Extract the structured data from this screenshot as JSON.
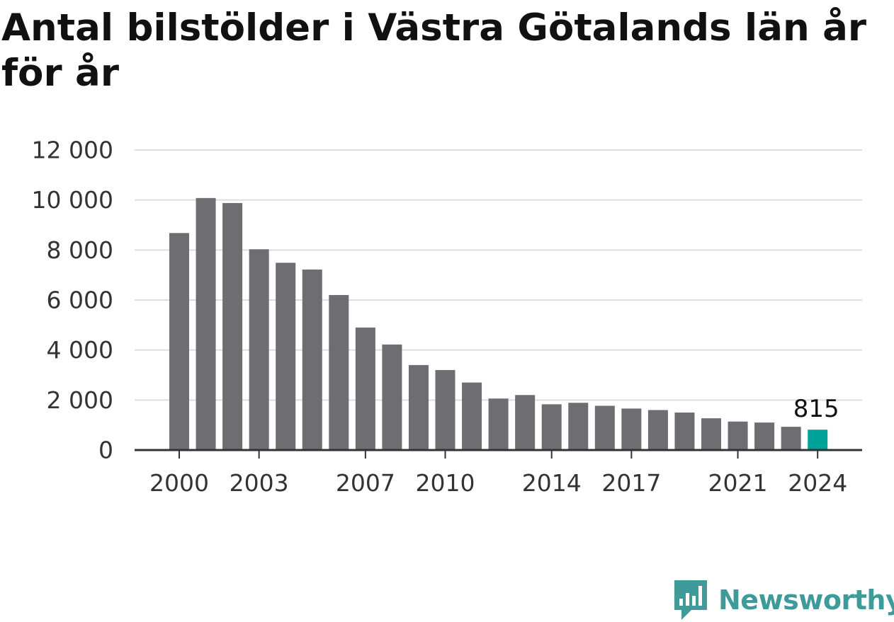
{
  "title": "Antal bilstölder i Västra Götalands län år för år",
  "brand": {
    "name": "Newsworthy",
    "color": "#3f9a9a"
  },
  "colors": {
    "bar": "#6e6d72",
    "highlight": "#00a39a",
    "grid": "#dddddd",
    "axis": "#333333"
  },
  "chart_data": {
    "type": "bar",
    "title": "Antal bilstölder i Västra Götalands län år för år",
    "xlabel": "",
    "ylabel": "",
    "ylim": [
      0,
      12000
    ],
    "yticks": [
      0,
      2000,
      4000,
      6000,
      8000,
      10000,
      12000
    ],
    "ytick_labels": [
      "0",
      "2 000",
      "4 000",
      "6 000",
      "8 000",
      "10 000",
      "12 000"
    ],
    "xtick_labels": [
      "2000",
      "2003",
      "2007",
      "2010",
      "2014",
      "2017",
      "2021",
      "2024"
    ],
    "categories": [
      "2000",
      "2001",
      "2002",
      "2003",
      "2004",
      "2005",
      "2006",
      "2007",
      "2008",
      "2009",
      "2010",
      "2011",
      "2012",
      "2013",
      "2014",
      "2015",
      "2016",
      "2017",
      "2018",
      "2019",
      "2020",
      "2021",
      "2022",
      "2023",
      "2024"
    ],
    "values": [
      8680,
      10080,
      9880,
      8030,
      7490,
      7220,
      6200,
      4900,
      4220,
      3400,
      3200,
      2700,
      2060,
      2200,
      1830,
      1890,
      1770,
      1660,
      1600,
      1500,
      1270,
      1140,
      1100,
      930,
      815
    ],
    "highlight_index": 24,
    "annotation": "815",
    "grid": true
  }
}
